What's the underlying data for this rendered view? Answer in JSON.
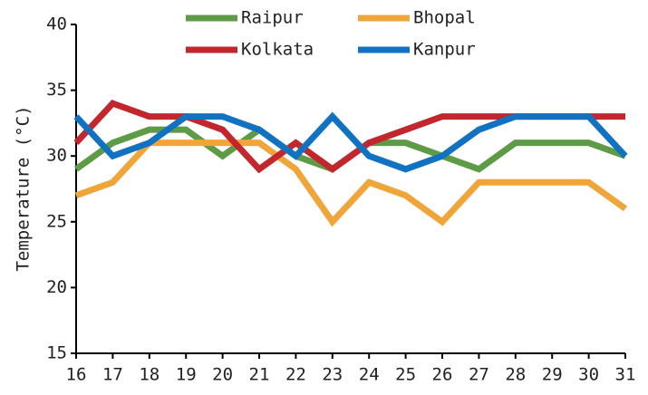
{
  "chart_data": {
    "type": "line",
    "y_label": "Temperature (°C)",
    "x": [
      16,
      17,
      18,
      19,
      20,
      21,
      22,
      23,
      24,
      25,
      26,
      27,
      28,
      29,
      30,
      31
    ],
    "xlim": [
      16,
      31
    ],
    "xticks": [
      16,
      17,
      18,
      19,
      20,
      21,
      22,
      23,
      24,
      25,
      26,
      27,
      28,
      29,
      30,
      31
    ],
    "ylim": [
      15,
      40
    ],
    "yticks": [
      15,
      20,
      25,
      30,
      35,
      40
    ],
    "legend": "top",
    "series": [
      {
        "name": "Raipur",
        "color": "#5e9b47",
        "values": [
          29,
          31,
          32,
          32,
          30,
          32,
          30,
          29,
          31,
          31,
          30,
          29,
          31,
          31,
          31,
          30
        ]
      },
      {
        "name": "Bhopal",
        "color": "#f0a53b",
        "values": [
          27,
          28,
          31,
          31,
          31,
          31,
          29,
          25,
          28,
          27,
          25,
          28,
          28,
          28,
          28,
          26
        ]
      },
      {
        "name": "Kolkata",
        "color": "#c1272d",
        "values": [
          31,
          34,
          33,
          33,
          32,
          29,
          31,
          29,
          31,
          32,
          33,
          33,
          33,
          33,
          33,
          33
        ]
      },
      {
        "name": "Kanpur",
        "color": "#1272c2",
        "values": [
          33,
          30,
          31,
          33,
          33,
          32,
          30,
          33,
          30,
          29,
          30,
          32,
          33,
          33,
          33,
          30
        ]
      }
    ]
  }
}
